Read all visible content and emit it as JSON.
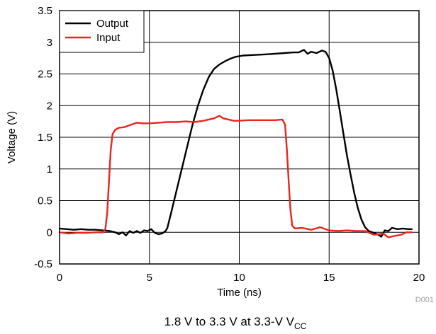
{
  "chart_data": {
    "type": "line",
    "xlabel": "Time (ns)",
    "ylabel": "Voltage (V)",
    "xlim": [
      0,
      20
    ],
    "ylim": [
      -0.5,
      3.5
    ],
    "x_ticks": [
      0,
      5,
      10,
      15,
      20
    ],
    "y_ticks": [
      -0.5,
      0,
      0.5,
      1,
      1.5,
      2,
      2.5,
      3,
      3.5
    ],
    "x_tick_labels": [
      "0",
      "5",
      "10",
      "15",
      "20"
    ],
    "y_tick_labels": [
      "-0.5",
      "0",
      "0.5",
      "1",
      "1.5",
      "2",
      "2.5",
      "3",
      "3.5"
    ],
    "grid": true,
    "legend_position": "top-left",
    "series": [
      {
        "name": "Output",
        "color": "#000000",
        "points": [
          [
            0,
            0.06
          ],
          [
            0.4,
            0.05
          ],
          [
            0.8,
            0.04
          ],
          [
            1.2,
            0.05
          ],
          [
            1.6,
            0.04
          ],
          [
            2.0,
            0.04
          ],
          [
            2.4,
            0.03
          ],
          [
            2.8,
            0.02
          ],
          [
            3.1,
            0.0
          ],
          [
            3.3,
            -0.03
          ],
          [
            3.5,
            0.0
          ],
          [
            3.7,
            -0.05
          ],
          [
            3.9,
            0.02
          ],
          [
            4.1,
            -0.01
          ],
          [
            4.3,
            0.02
          ],
          [
            4.5,
            -0.01
          ],
          [
            4.7,
            0.03
          ],
          [
            4.9,
            0.02
          ],
          [
            5.1,
            0.05
          ],
          [
            5.3,
            -0.01
          ],
          [
            5.5,
            -0.03
          ],
          [
            5.7,
            -0.02
          ],
          [
            5.9,
            0.02
          ],
          [
            6.0,
            0.07
          ],
          [
            6.2,
            0.3
          ],
          [
            6.5,
            0.65
          ],
          [
            6.8,
            1.0
          ],
          [
            7.1,
            1.35
          ],
          [
            7.4,
            1.7
          ],
          [
            7.7,
            2.0
          ],
          [
            8.0,
            2.25
          ],
          [
            8.3,
            2.45
          ],
          [
            8.6,
            2.58
          ],
          [
            8.9,
            2.65
          ],
          [
            9.2,
            2.7
          ],
          [
            9.5,
            2.74
          ],
          [
            9.8,
            2.77
          ],
          [
            10.2,
            2.79
          ],
          [
            10.8,
            2.8
          ],
          [
            11.5,
            2.81
          ],
          [
            12.0,
            2.82
          ],
          [
            12.5,
            2.83
          ],
          [
            13.0,
            2.84
          ],
          [
            13.3,
            2.84
          ],
          [
            13.6,
            2.88
          ],
          [
            13.8,
            2.82
          ],
          [
            14.0,
            2.85
          ],
          [
            14.3,
            2.83
          ],
          [
            14.6,
            2.87
          ],
          [
            14.8,
            2.85
          ],
          [
            15.0,
            2.75
          ],
          [
            15.2,
            2.55
          ],
          [
            15.4,
            2.25
          ],
          [
            15.6,
            1.9
          ],
          [
            15.8,
            1.55
          ],
          [
            16.0,
            1.2
          ],
          [
            16.2,
            0.9
          ],
          [
            16.4,
            0.62
          ],
          [
            16.6,
            0.38
          ],
          [
            16.8,
            0.2
          ],
          [
            17.0,
            0.08
          ],
          [
            17.2,
            0.02
          ],
          [
            17.4,
            0.0
          ],
          [
            17.6,
            -0.02
          ],
          [
            17.8,
            -0.05
          ],
          [
            17.9,
            -0.07
          ],
          [
            18.1,
            0.03
          ],
          [
            18.3,
            0.02
          ],
          [
            18.5,
            0.07
          ],
          [
            18.8,
            0.05
          ],
          [
            19.1,
            0.06
          ],
          [
            19.4,
            0.05
          ],
          [
            19.6,
            0.05
          ]
        ]
      },
      {
        "name": "Input",
        "color": "#e8251f",
        "points": [
          [
            0,
            0.0
          ],
          [
            0.5,
            -0.02
          ],
          [
            1.0,
            -0.01
          ],
          [
            1.5,
            -0.01
          ],
          [
            2.0,
            0.0
          ],
          [
            2.4,
            0.0
          ],
          [
            2.55,
            0.05
          ],
          [
            2.65,
            0.3
          ],
          [
            2.75,
            0.8
          ],
          [
            2.85,
            1.3
          ],
          [
            2.95,
            1.55
          ],
          [
            3.1,
            1.62
          ],
          [
            3.3,
            1.65
          ],
          [
            3.6,
            1.66
          ],
          [
            3.8,
            1.68
          ],
          [
            4.0,
            1.7
          ],
          [
            4.3,
            1.73
          ],
          [
            4.7,
            1.72
          ],
          [
            5.0,
            1.72
          ],
          [
            5.5,
            1.73
          ],
          [
            6.0,
            1.74
          ],
          [
            6.5,
            1.74
          ],
          [
            7.0,
            1.75
          ],
          [
            7.5,
            1.74
          ],
          [
            8.0,
            1.76
          ],
          [
            8.3,
            1.78
          ],
          [
            8.6,
            1.8
          ],
          [
            8.9,
            1.84
          ],
          [
            9.1,
            1.8
          ],
          [
            9.4,
            1.78
          ],
          [
            9.7,
            1.76
          ],
          [
            10.0,
            1.76
          ],
          [
            10.5,
            1.77
          ],
          [
            11.0,
            1.77
          ],
          [
            11.5,
            1.77
          ],
          [
            12.0,
            1.77
          ],
          [
            12.4,
            1.78
          ],
          [
            12.55,
            1.7
          ],
          [
            12.65,
            1.3
          ],
          [
            12.75,
            0.8
          ],
          [
            12.85,
            0.35
          ],
          [
            12.95,
            0.1
          ],
          [
            13.1,
            0.06
          ],
          [
            13.5,
            0.07
          ],
          [
            14.0,
            0.04
          ],
          [
            14.5,
            0.08
          ],
          [
            15.0,
            0.03
          ],
          [
            15.5,
            0.02
          ],
          [
            16.0,
            0.03
          ],
          [
            16.5,
            0.02
          ],
          [
            17.0,
            0.02
          ],
          [
            17.5,
            -0.04
          ],
          [
            18.0,
            -0.02
          ],
          [
            18.3,
            -0.08
          ],
          [
            18.6,
            -0.06
          ],
          [
            19.0,
            -0.04
          ],
          [
            19.3,
            0.0
          ],
          [
            19.6,
            0.0
          ]
        ]
      }
    ],
    "figure_id": "D001"
  },
  "caption": {
    "main": "1.8 V to 3.3 V at 3.3-V V",
    "subscript": "CC"
  }
}
